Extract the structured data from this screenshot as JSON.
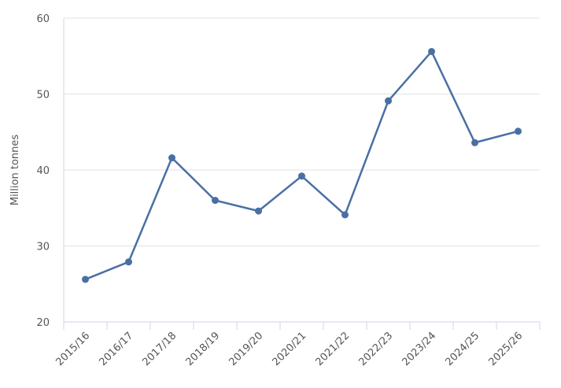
{
  "chart_data": {
    "type": "line",
    "y_label": "Million tonnes",
    "categories": [
      "2015/16",
      "2016/17",
      "2017/18",
      "2018/19",
      "2019/20",
      "2020/21",
      "2021/22",
      "2022/23",
      "2023/24",
      "2024/25",
      "2025/26"
    ],
    "series": [
      {
        "color": "#4a6fa5",
        "values": [
          25.6,
          27.9,
          41.6,
          36.0,
          34.6,
          39.2,
          34.1,
          49.1,
          55.6,
          43.6,
          45.1
        ]
      }
    ],
    "ylim": [
      20,
      60
    ],
    "yticks": [
      20,
      30,
      40,
      50,
      60
    ],
    "grid": true
  }
}
